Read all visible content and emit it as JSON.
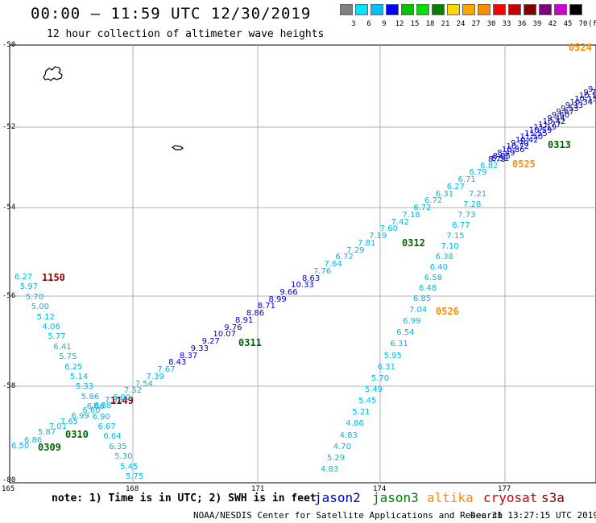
{
  "header": {
    "title": "00:00 – 11:59 UTC 12/30/2019",
    "subtitle": "12 hour collection of altimeter wave heights"
  },
  "color_scale": {
    "labels": [
      "3",
      "6",
      "9",
      "12",
      "15",
      "18",
      "21",
      "24",
      "27",
      "30",
      "33",
      "36",
      "39",
      "42",
      "45",
      "70"
    ],
    "unit": "(ft)",
    "colors": [
      "#808080",
      "#00e5ff",
      "#00bfff",
      "#0000ff",
      "#00c800",
      "#00e000",
      "#008000",
      "#ffd700",
      "#ffa500",
      "#ff8c00",
      "#ff0000",
      "#c80000",
      "#800000",
      "#800080",
      "#d000d0",
      "#000000"
    ]
  },
  "axes": {
    "lat_labels": [
      "-50",
      "-52",
      "-54",
      "-56",
      "-58",
      "-80"
    ],
    "lon_labels": [
      "165",
      "168",
      "171",
      "174",
      "177"
    ]
  },
  "tracks": {
    "t1150": {
      "time": "1150",
      "time_color": "#8b0000",
      "values": [
        "6.27",
        "5.97",
        "5.70",
        "5.00",
        "5.12",
        "4.06",
        "5.77",
        "6.41",
        "5.75",
        "6.25",
        "5.14",
        "5.33",
        "5.86",
        "6.86",
        "6.90",
        "6.67",
        "6.64",
        "6.35",
        "5.30",
        "5.45",
        "5.75"
      ]
    },
    "t0309": {
      "time": "0309",
      "time_color": "#006400",
      "values": [
        "6.50",
        "6.86"
      ]
    },
    "t0310": {
      "time": "0310",
      "time_color": "#006400",
      "values": [
        "5.87",
        "7.01",
        "7.65",
        "6.99",
        "6.60",
        "6.88",
        "7.03"
      ]
    },
    "t1149": {
      "time": "1149",
      "time_color": "#8b0000"
    },
    "t0311": {
      "time": "0311",
      "time_color": "#006400",
      "values": [
        "6.90",
        "7.52",
        "7.54",
        "7.39",
        "7.67",
        "8.43",
        "8.37",
        "9.33",
        "9.27",
        "10.07",
        "9.76",
        "8.91",
        "8.86",
        "8.71",
        "8.99",
        "9.66",
        "10.33",
        "8.63",
        "7.76",
        "7.64",
        "6.72",
        "7.29",
        "7.81",
        "7.19",
        "7.60",
        "7.42",
        "7.18",
        "6.72",
        "6.72",
        "6.31",
        "6.27",
        "6.71",
        "6.79",
        "6.82",
        "8.51"
      ]
    },
    "t0312": {
      "time": "0312",
      "time_color": "#006400",
      "values": [
        "7.21",
        "7.28",
        "7.73",
        "6.77",
        "7.15",
        "7.10",
        "6.38",
        "6.40",
        "6.58",
        "6.48",
        "6.85"
      ]
    },
    "t0313": {
      "time": "0313",
      "time_color": "#006400",
      "values": [
        "9",
        "9.7",
        "10.11",
        "10.13",
        "10.34",
        "9.33",
        "9.53",
        "9.67",
        "9.60",
        "9.44",
        "10.42",
        "11.77",
        "11.19",
        "10.59",
        "11.55",
        "11.50",
        "10.42",
        "9.70",
        "10.72",
        "10.86",
        "8.49",
        "8.05",
        "8.79"
      ]
    },
    "t0524": {
      "time": "0524",
      "time_color": "#ff8c00"
    },
    "t0525": {
      "time": "0525",
      "time_color": "#ff8c00"
    },
    "t0526": {
      "time": "0526",
      "time_color": "#ff8c00",
      "values": [
        "7.04",
        "6.99",
        "6.54",
        "6.31",
        "5.95",
        "6.31",
        "5.70",
        "5.49",
        "5.45",
        "5.21",
        "4.86",
        "4.83",
        "4.70",
        "5.29",
        "4.83"
      ]
    }
  },
  "footer": {
    "note": "note: 1) Time is in UTC; 2) SWH is in feet",
    "satellites": [
      {
        "name": "jason2",
        "color": "#0000cc"
      },
      {
        "name": "jason3",
        "color": "#008000"
      },
      {
        "name": "altika",
        "color": "#ff8c00"
      },
      {
        "name": "cryosat",
        "color": "#cc0000"
      },
      {
        "name": "s3a",
        "color": "#8b0000"
      }
    ],
    "credit": "NOAA/NESDIS Center for Satellite Applications and Research",
    "timestamp": "Dec 31 13:27:15 UTC 2019"
  }
}
